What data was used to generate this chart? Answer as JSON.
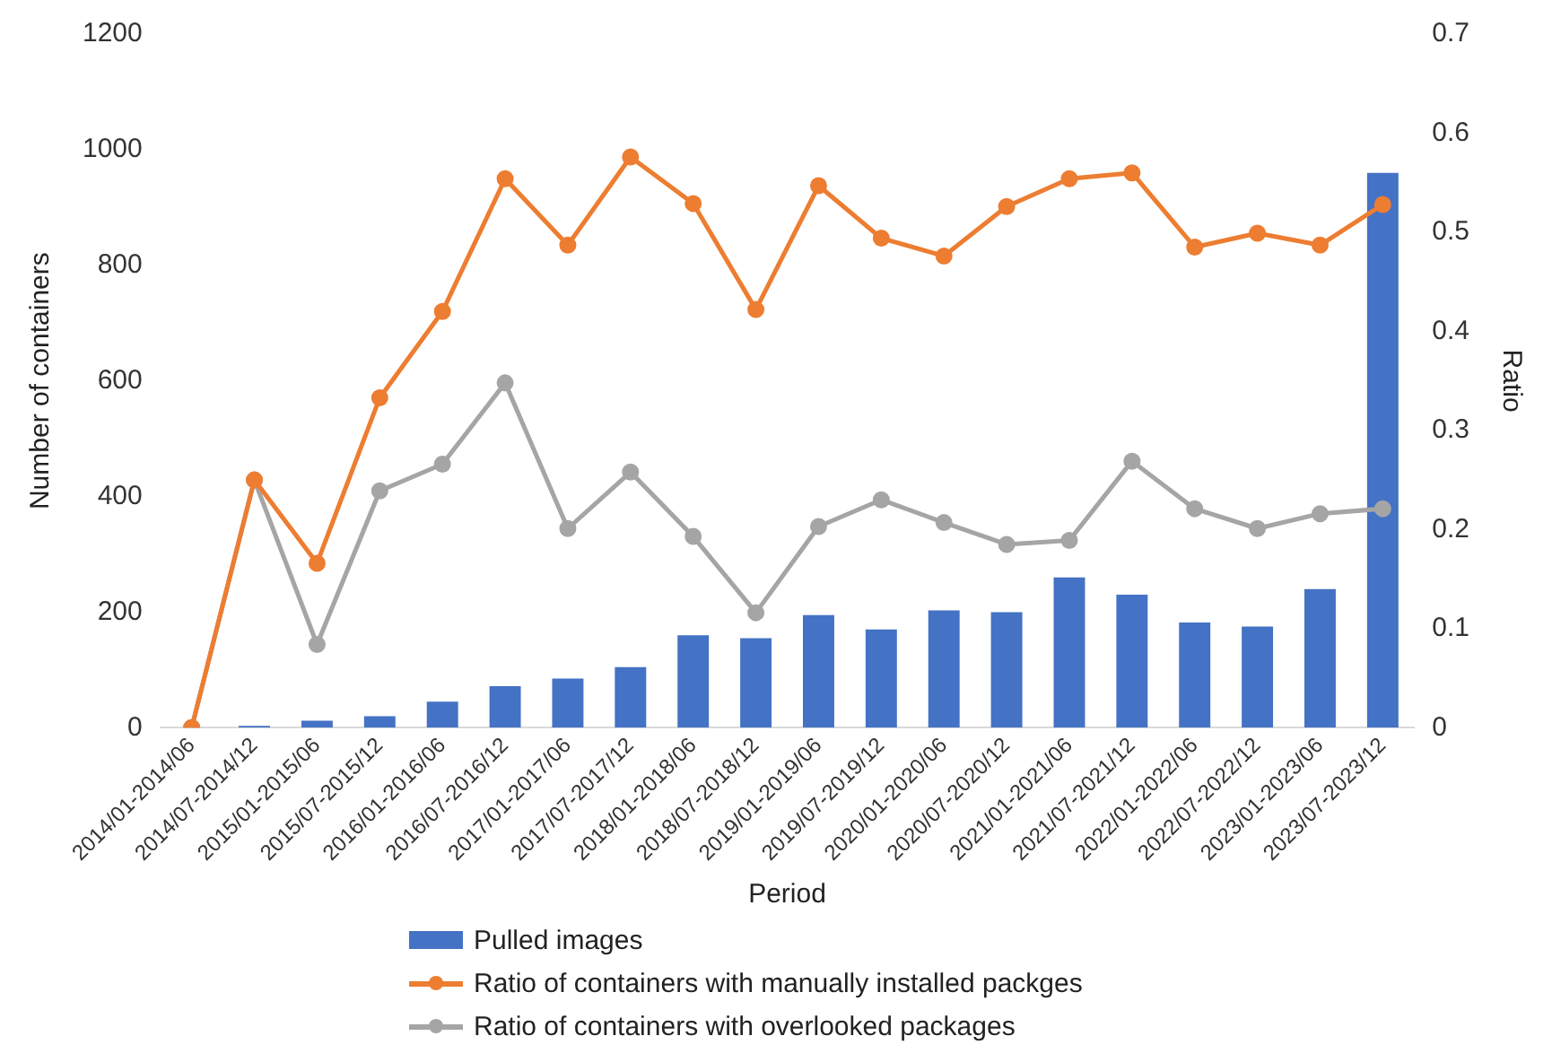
{
  "chart_data": {
    "type": "bar",
    "xlabel": "Period",
    "ylabel": "Number of containers",
    "y2label": "Ratio",
    "categories": [
      "2014/01-2014/06",
      "2014/07-2014/12",
      "2015/01-2015/06",
      "2015/07-2015/12",
      "2016/01-2016/06",
      "2016/07-2016/12",
      "2017/01-2017/06",
      "2017/07-2017/12",
      "2018/01-2018/06",
      "2018/07-2018/12",
      "2019/01-2019/06",
      "2019/07-2019/12",
      "2020/01-2020/06",
      "2020/07-2020/12",
      "2021/01-2021/06",
      "2021/07-2021/12",
      "2022/01-2022/06",
      "2022/07-2022/12",
      "2023/01-2023/06",
      "2023/07-2023/12"
    ],
    "series": [
      {
        "name": "Pulled images",
        "color": "#4472c4",
        "values": [
          0,
          3,
          12,
          20,
          45,
          72,
          85,
          105,
          160,
          155,
          195,
          170,
          203,
          200,
          260,
          230,
          182,
          175,
          240,
          960
        ]
      },
      {
        "name": "Ratio of containers with manually installed packges",
        "type": "line",
        "axis": "y2",
        "color": "#ed7d31",
        "values": [
          0,
          0.25,
          0.166,
          0.333,
          0.42,
          0.554,
          0.487,
          0.576,
          0.529,
          0.422,
          0.547,
          0.494,
          0.476,
          0.526,
          0.554,
          0.56,
          0.485,
          0.499,
          0.487,
          0.528
        ]
      },
      {
        "name": "Ratio of containers with overlooked packages",
        "type": "line",
        "axis": "y2",
        "color": "#a5a5a5",
        "values": [
          0,
          0.25,
          0.084,
          0.239,
          0.266,
          0.348,
          0.201,
          0.258,
          0.193,
          0.116,
          0.203,
          0.23,
          0.207,
          0.185,
          0.189,
          0.269,
          0.221,
          0.201,
          0.216,
          0.221
        ]
      }
    ],
    "ylim": [
      0,
      1200
    ],
    "yticks": [
      0,
      200,
      400,
      600,
      800,
      1000,
      1200
    ],
    "y2lim": [
      0,
      0.7
    ],
    "y2ticks": [
      0,
      0.1,
      0.2,
      0.3,
      0.4,
      0.5,
      0.6,
      0.7
    ],
    "grid": false,
    "legend": "bottom",
    "marker": "circle",
    "line_style": "solid"
  }
}
